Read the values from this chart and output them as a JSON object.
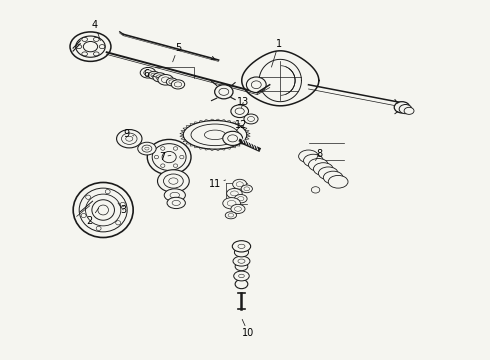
{
  "background_color": "#f5f5f0",
  "fig_width": 4.9,
  "fig_height": 3.6,
  "dpi": 100,
  "line_color": "#1a1a1a",
  "text_color": "#000000",
  "font_size": 7,
  "label_positions": {
    "1": [
      0.595,
      0.885,
      0.575,
      0.82
    ],
    "2": [
      0.06,
      0.385,
      0.085,
      0.42
    ],
    "3": [
      0.155,
      0.415,
      0.14,
      0.435
    ],
    "4": [
      0.075,
      0.94,
      0.09,
      0.895
    ],
    "5": [
      0.31,
      0.875,
      0.295,
      0.835
    ],
    "6": [
      0.22,
      0.8,
      0.255,
      0.79
    ],
    "7": [
      0.265,
      0.565,
      0.29,
      0.57
    ],
    "8": [
      0.71,
      0.575,
      0.7,
      0.555
    ],
    "9": [
      0.165,
      0.63,
      0.185,
      0.625
    ],
    "10": [
      0.51,
      0.065,
      0.492,
      0.105
    ],
    "11": [
      0.415,
      0.49,
      0.445,
      0.5
    ],
    "12": [
      0.49,
      0.655,
      0.475,
      0.64
    ],
    "13": [
      0.495,
      0.72,
      0.49,
      0.705
    ]
  }
}
